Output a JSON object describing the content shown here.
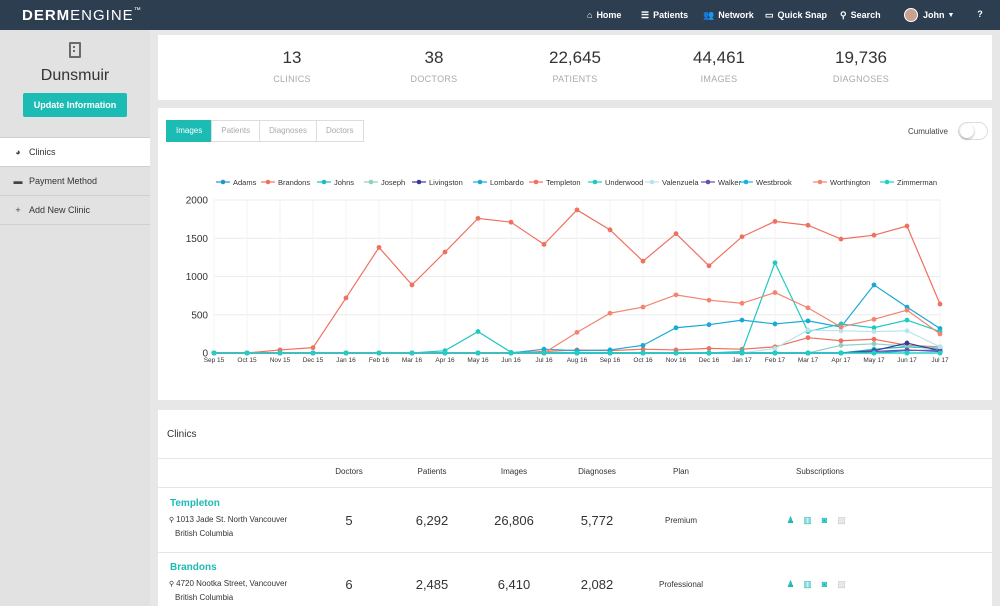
{
  "brand": {
    "part1": "DERM",
    "part2": "ENGINE",
    "tm": "™"
  },
  "nav": {
    "home": "Home",
    "patients": "Patients",
    "network": "Network",
    "quick_snap": "Quick Snap",
    "search": "Search",
    "user": "John",
    "help": "?"
  },
  "sidebar": {
    "clinic_name": "Dunsmuir",
    "update_button": "Update Information",
    "items": [
      {
        "label": "Clinics",
        "icon": "pie-chart-icon"
      },
      {
        "label": "Payment Method",
        "icon": "credit-card-icon"
      },
      {
        "label": "Add New Clinic",
        "icon": "plus-icon"
      }
    ]
  },
  "stats": [
    {
      "value": "13",
      "label": "CLINICS"
    },
    {
      "value": "38",
      "label": "DOCTORS"
    },
    {
      "value": "22,645",
      "label": "PATIENTS"
    },
    {
      "value": "44,461",
      "label": "IMAGES"
    },
    {
      "value": "19,736",
      "label": "DIAGNOSES"
    }
  ],
  "chart_tabs": [
    "Images",
    "Patients",
    "Diagnoses",
    "Doctors"
  ],
  "cumulative_label": "Cumulative",
  "chart_data": {
    "type": "line",
    "x": [
      "Sep 15",
      "Oct 15",
      "Nov 15",
      "Dec 15",
      "Jan 16",
      "Feb 16",
      "Mar 16",
      "Apr 16",
      "May 16",
      "Jun 16",
      "Jul 16",
      "Aug 16",
      "Sep 16",
      "Oct 16",
      "Nov 16",
      "Dec 16",
      "Jan 17",
      "Feb 17",
      "Mar 17",
      "Apr 17",
      "May 17",
      "Jun 17",
      "Jul 17"
    ],
    "ylim": [
      0,
      2000
    ],
    "yticks": [
      0,
      500,
      1000,
      1500,
      2000
    ],
    "legend_position": "top",
    "grid": true,
    "series": [
      {
        "name": "Adams",
        "color": "#2196c9",
        "values": [
          0,
          0,
          0,
          0,
          0,
          0,
          0,
          0,
          0,
          0,
          0,
          0,
          0,
          0,
          0,
          0,
          0,
          0,
          0,
          0,
          0,
          30,
          40
        ]
      },
      {
        "name": "Brandons",
        "color": "#f0705f",
        "values": [
          0,
          0,
          0,
          0,
          0,
          0,
          0,
          0,
          0,
          0,
          20,
          40,
          30,
          50,
          40,
          60,
          50,
          80,
          200,
          160,
          180,
          100,
          80
        ]
      },
      {
        "name": "Johns",
        "color": "#16c1bd",
        "values": [
          0,
          0,
          0,
          0,
          0,
          0,
          0,
          0,
          0,
          0,
          0,
          0,
          0,
          0,
          0,
          0,
          0,
          0,
          0,
          0,
          50,
          80,
          60
        ]
      },
      {
        "name": "Joseph",
        "color": "#8fcfc2",
        "values": [
          0,
          0,
          0,
          0,
          0,
          0,
          0,
          0,
          0,
          0,
          0,
          0,
          0,
          0,
          0,
          0,
          0,
          0,
          0,
          100,
          120,
          90,
          70
        ]
      },
      {
        "name": "Livingston",
        "color": "#38379a",
        "values": [
          0,
          0,
          0,
          0,
          0,
          0,
          0,
          0,
          0,
          0,
          0,
          0,
          0,
          0,
          0,
          0,
          0,
          0,
          0,
          0,
          30,
          130,
          30
        ]
      },
      {
        "name": "Lombardo",
        "color": "#19a9d6",
        "values": [
          0,
          0,
          0,
          0,
          0,
          0,
          0,
          0,
          0,
          0,
          50,
          30,
          40,
          100,
          330,
          370,
          430,
          380,
          420,
          340,
          890,
          600,
          320
        ]
      },
      {
        "name": "Templeton",
        "color": "#f0705f",
        "values": [
          0,
          0,
          40,
          70,
          720,
          1380,
          890,
          1320,
          1760,
          1710,
          1420,
          1870,
          1610,
          1200,
          1560,
          1140,
          1520,
          1720,
          1670,
          1490,
          1540,
          1660,
          640
        ]
      },
      {
        "name": "Underwood",
        "color": "#1ec9c0",
        "values": [
          0,
          0,
          0,
          0,
          0,
          0,
          0,
          30,
          280,
          10,
          0,
          0,
          0,
          0,
          0,
          0,
          20,
          1180,
          280,
          380,
          330,
          430,
          280
        ]
      },
      {
        "name": "Valenzuela",
        "color": "#b8e3ef",
        "values": [
          0,
          0,
          0,
          0,
          0,
          0,
          0,
          0,
          0,
          0,
          0,
          0,
          0,
          0,
          0,
          0,
          0,
          60,
          300,
          290,
          280,
          290,
          80
        ]
      },
      {
        "name": "Walker",
        "color": "#6a4bb0",
        "values": [
          0,
          0,
          0,
          0,
          0,
          0,
          0,
          0,
          0,
          0,
          0,
          0,
          0,
          0,
          0,
          0,
          0,
          0,
          0,
          0,
          20,
          40,
          20
        ]
      },
      {
        "name": "Westbrook",
        "color": "#13b3e0",
        "values": [
          0,
          0,
          0,
          0,
          0,
          0,
          0,
          0,
          0,
          0,
          0,
          0,
          0,
          0,
          0,
          0,
          0,
          0,
          0,
          0,
          0,
          0,
          0
        ]
      },
      {
        "name": "Worthington",
        "color": "#f28470",
        "values": [
          0,
          0,
          0,
          0,
          0,
          0,
          0,
          0,
          0,
          0,
          0,
          270,
          520,
          600,
          760,
          690,
          650,
          790,
          590,
          340,
          440,
          560,
          250
        ]
      },
      {
        "name": "Zimmerman",
        "color": "#1bd1c6",
        "values": [
          0,
          0,
          0,
          0,
          0,
          0,
          0,
          0,
          0,
          0,
          0,
          0,
          0,
          0,
          0,
          0,
          0,
          0,
          0,
          0,
          0,
          0,
          0
        ]
      }
    ]
  },
  "clinics_table": {
    "title": "Clinics",
    "headers": [
      "Doctors",
      "Patients",
      "Images",
      "Diagnoses",
      "Plan",
      "Subscriptions"
    ],
    "rows": [
      {
        "name": "Templeton",
        "address1": "1013 Jade St. North Vancouver",
        "address2": "British Columbia",
        "doctors": "5",
        "patients": "6,292",
        "images": "26,806",
        "diagnoses": "5,772",
        "plan": "Premium"
      },
      {
        "name": "Brandons",
        "address1": "4720 Nootka Street, Vancouver",
        "address2": "British Columbia",
        "doctors": "6",
        "patients": "2,485",
        "images": "6,410",
        "diagnoses": "2,082",
        "plan": "Professional"
      }
    ],
    "subscription_icons": [
      "person-icon",
      "bar-chart-icon",
      "camera-icon",
      "image-icon"
    ]
  }
}
